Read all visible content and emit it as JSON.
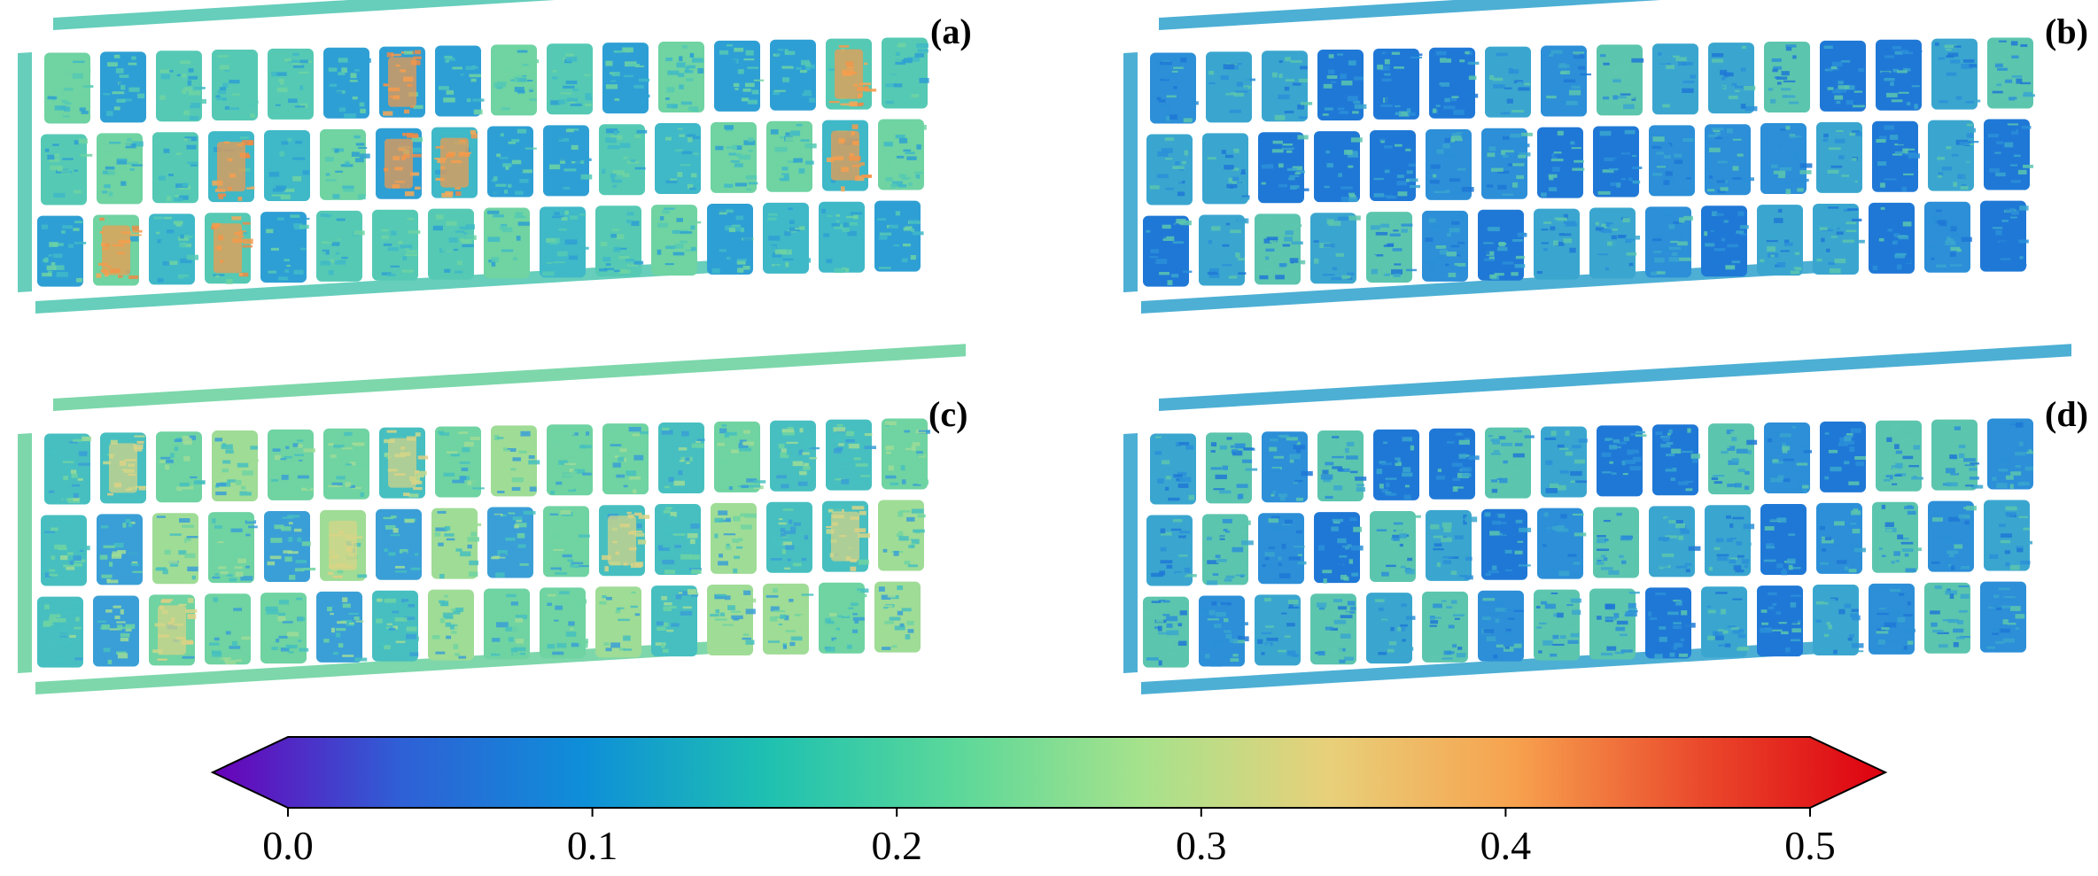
{
  "panels": [
    {
      "label": "(a)",
      "palette": "high",
      "highlights": [
        6,
        14,
        19,
        22,
        23,
        30,
        33,
        35
      ]
    },
    {
      "label": "(b)",
      "palette": "low",
      "highlights": []
    },
    {
      "label": "(c)",
      "palette": "mid",
      "highlights": [
        1,
        6,
        21,
        26,
        30,
        34
      ]
    },
    {
      "label": "(d)",
      "palette": "low",
      "highlights": []
    }
  ],
  "colorbar": {
    "min": 0.0,
    "max": 0.5,
    "ticks": [
      "0.0",
      "0.1",
      "0.2",
      "0.3",
      "0.4",
      "0.5"
    ],
    "tick_values": [
      0.0,
      0.1,
      0.2,
      0.3,
      0.4,
      0.5
    ],
    "extend": "both",
    "colors": [
      "#6a00b8",
      "#2f5fd6",
      "#0e8fd8",
      "#1fc1b0",
      "#5bd89a",
      "#a6e28c",
      "#e8d07a",
      "#f7a24e",
      "#ea4a2c",
      "#dd0010"
    ]
  }
}
